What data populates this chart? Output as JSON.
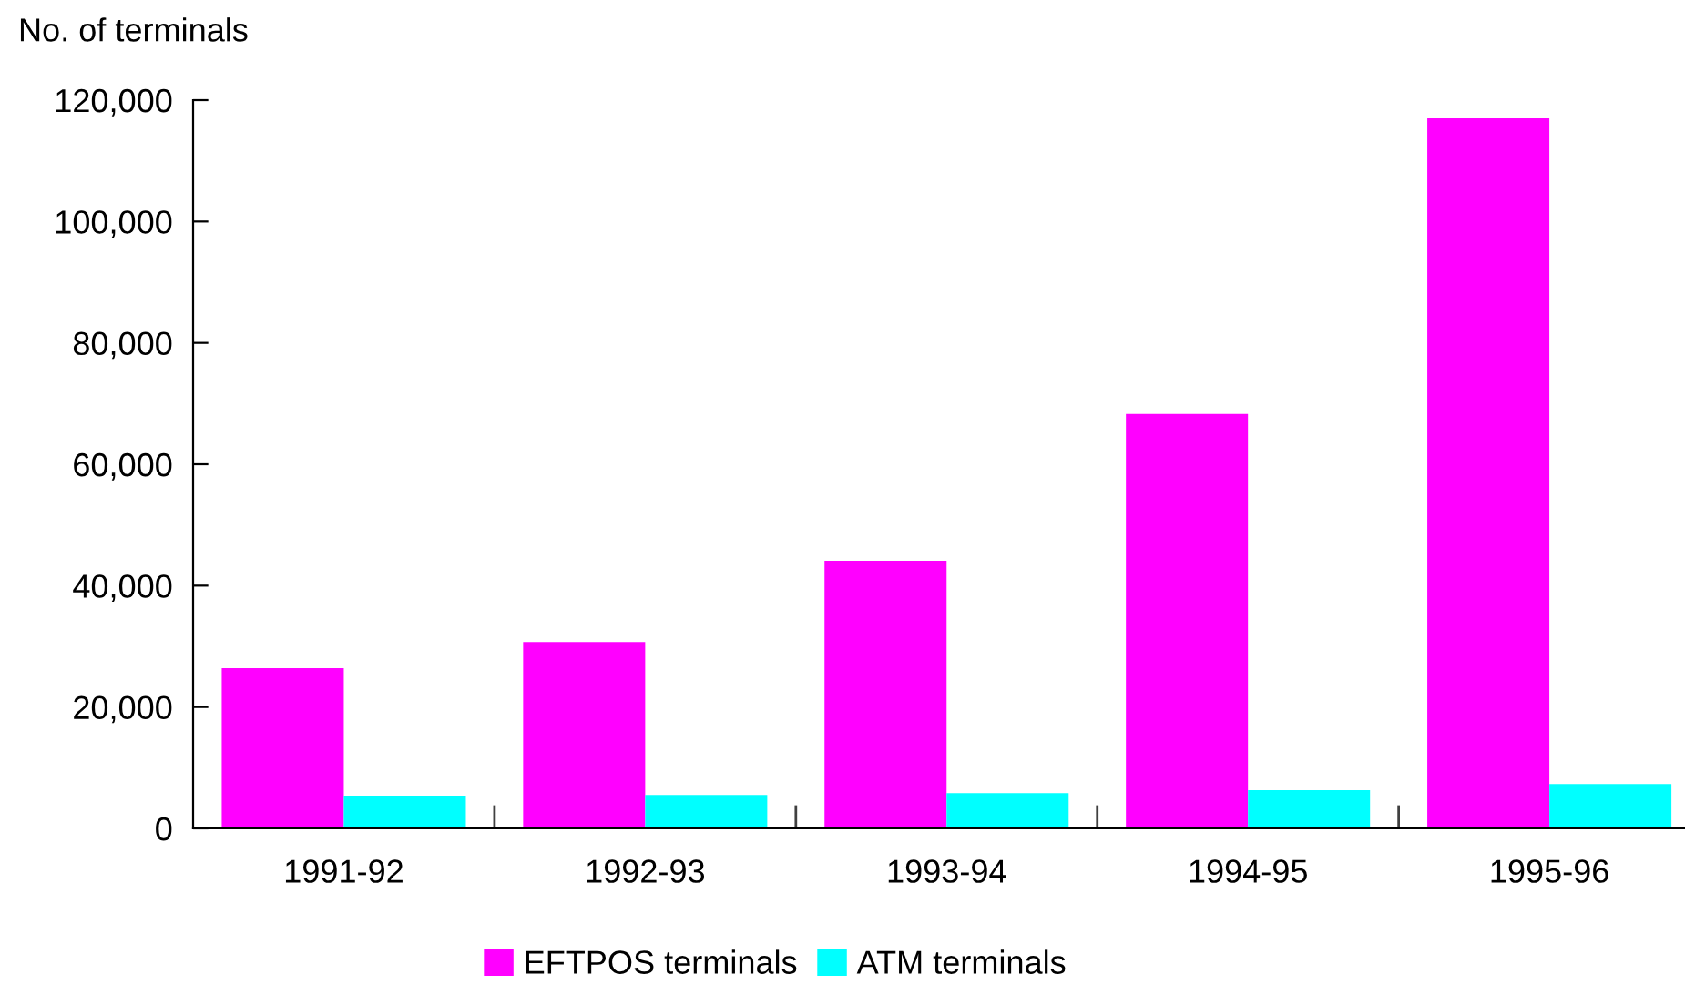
{
  "chart_data": {
    "type": "bar",
    "ylabel": "No. of terminals",
    "categories": [
      "1991-92",
      "1992-93",
      "1993-94",
      "1994-95",
      "1995-96"
    ],
    "series": [
      {
        "name": "EFTPOS terminals",
        "color": "#ff00ff",
        "values": [
          26400,
          30700,
          44100,
          68300,
          117000
        ]
      },
      {
        "name": "ATM terminals",
        "color": "#00ffff",
        "values": [
          5400,
          5500,
          5800,
          6300,
          7300
        ]
      }
    ],
    "ylim": [
      0,
      120000
    ],
    "yticks": [
      {
        "value": 0,
        "label": "0"
      },
      {
        "value": 20000,
        "label": "20,000"
      },
      {
        "value": 40000,
        "label": "40,000"
      },
      {
        "value": 60000,
        "label": "60,000"
      },
      {
        "value": 80000,
        "label": "80,000"
      },
      {
        "value": 100000,
        "label": "100,000"
      },
      {
        "value": 120000,
        "label": "120,000"
      }
    ],
    "grid": false,
    "legend": "bottom"
  }
}
